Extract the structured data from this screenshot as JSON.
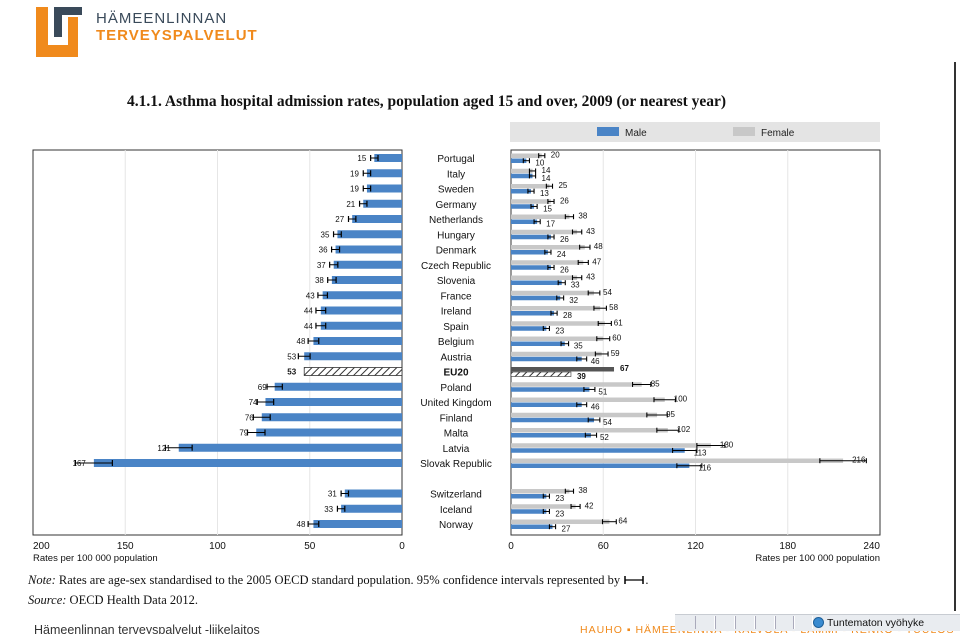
{
  "header": {
    "logo_line1": "HÄMEENLINNAN",
    "logo_line2": "TERVEYSPALVELUT"
  },
  "chart_data": {
    "type": "bar",
    "title": "4.1.1. Asthma hospital admission rates, population aged 15 and over, 2009 (or nearest year)",
    "legend": {
      "placement": "top-right",
      "male": "Male",
      "female": "Female"
    },
    "colors": {
      "male": "#4a84c6",
      "female": "#c8c8c8",
      "eu20": "#555555"
    },
    "categories": [
      "Portugal",
      "Italy",
      "Sweden",
      "Germany",
      "Netherlands",
      "Hungary",
      "Denmark",
      "Czech Republic",
      "Slovenia",
      "France",
      "Ireland",
      "Spain",
      "Belgium",
      "Austria",
      "EU20",
      "Poland",
      "United Kingdom",
      "Finland",
      "Malta",
      "Latvia",
      "Slovak Republic",
      "Switzerland",
      "Iceland",
      "Norway"
    ],
    "highlight_category": "EU20",
    "left_panel": {
      "series_name": "Total",
      "values": [
        15,
        19,
        19,
        21,
        27,
        35,
        36,
        37,
        38,
        43,
        44,
        44,
        48,
        53,
        53,
        69,
        74,
        76,
        79,
        121,
        167,
        31,
        33,
        48
      ],
      "xlim": [
        0,
        200
      ],
      "reversed": true,
      "ticks": [
        "200",
        "150",
        "100",
        "50",
        "0"
      ],
      "xlabel": "Rates per 100 000 population"
    },
    "right_panel": {
      "series": [
        {
          "name": "Female",
          "values": [
            20,
            14,
            25,
            26,
            38,
            43,
            48,
            47,
            43,
            54,
            58,
            61,
            60,
            59,
            67,
            85,
            100,
            95,
            102,
            130,
            216,
            38,
            42,
            64
          ]
        },
        {
          "name": "Male",
          "values": [
            10,
            14,
            13,
            15,
            17,
            26,
            24,
            26,
            33,
            32,
            28,
            23,
            35,
            46,
            39,
            51,
            46,
            54,
            52,
            113,
            116,
            23,
            23,
            27
          ]
        }
      ],
      "xlim": [
        0,
        240
      ],
      "ticks": [
        "0",
        "60",
        "120",
        "180",
        "240"
      ],
      "xlabel": "Rates per 100 000 population"
    }
  },
  "notes": {
    "note_label": "Note:",
    "note_text": "Rates are age-sex standardised to the 2005 OECD standard population. 95% confidence intervals represented by",
    "note_end": ".",
    "source_label": "Source:",
    "source_text": "OECD Health Data 2012."
  },
  "footer": {
    "left": "Hämeenlinnan terveyspalvelut -liikelaitos",
    "right": "HAUHO ▪ HÄMEENLINNA ▪ KALVOLA ▪ LAMMI ▪ RENKO ▪ TUULOS"
  },
  "statusbar": {
    "zone": "Tuntematon vyöhyke"
  }
}
